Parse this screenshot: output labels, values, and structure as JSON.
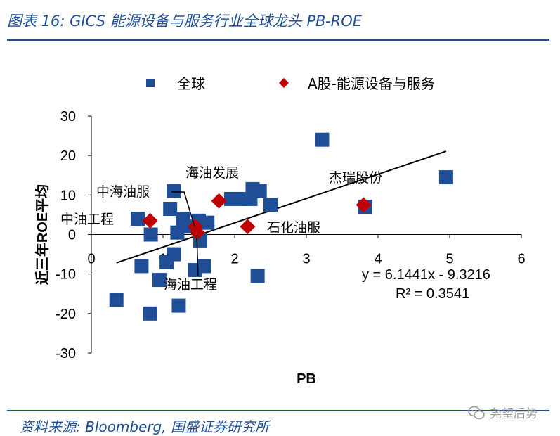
{
  "header": {
    "title": "图表 16:  GICS 能源设备与服务行业全球龙头 PB-ROE"
  },
  "footer": {
    "source": "资料来源:  Bloomberg,  国盛证券研究所",
    "brand": "尧望后势"
  },
  "colors": {
    "global": "#1f4e96",
    "ashare": "#c00000",
    "accent": "#1f4e96"
  },
  "chart_data": {
    "type": "scatter",
    "xlabel": "PB",
    "ylabel": "近三年ROE平均",
    "xlim": [
      0,
      6
    ],
    "ylim": [
      -30,
      30
    ],
    "xticks": [
      "0",
      "1",
      "2",
      "3",
      "4",
      "5",
      "6"
    ],
    "yticks": [
      "30",
      "20",
      "10",
      "0",
      "-10",
      "-20",
      "-30"
    ],
    "legend": {
      "placement": "top",
      "entries": [
        "全球",
        "A股-能源设备与服务"
      ]
    },
    "series": [
      {
        "name": "全球",
        "marker": "square",
        "points": [
          {
            "x": 0.35,
            "y": -16.5
          },
          {
            "x": 0.65,
            "y": 4.0
          },
          {
            "x": 0.7,
            "y": -8.0
          },
          {
            "x": 0.82,
            "y": -20.0
          },
          {
            "x": 0.83,
            "y": 0.0
          },
          {
            "x": 0.95,
            "y": -11.5
          },
          {
            "x": 1.05,
            "y": -7.0
          },
          {
            "x": 1.1,
            "y": 6.5
          },
          {
            "x": 1.15,
            "y": 11.0
          },
          {
            "x": 1.15,
            "y": -5.0
          },
          {
            "x": 1.2,
            "y": 0.5
          },
          {
            "x": 1.22,
            "y": -18.0
          },
          {
            "x": 1.28,
            "y": 4.0
          },
          {
            "x": 1.35,
            "y": 2.0
          },
          {
            "x": 1.45,
            "y": -9.0
          },
          {
            "x": 1.5,
            "y": 3.5
          },
          {
            "x": 1.52,
            "y": -1.5
          },
          {
            "x": 1.57,
            "y": -8.0
          },
          {
            "x": 1.62,
            "y": 3.0
          },
          {
            "x": 1.95,
            "y": 9.0
          },
          {
            "x": 2.1,
            "y": 9.0
          },
          {
            "x": 2.22,
            "y": 9.0
          },
          {
            "x": 2.25,
            "y": 11.5
          },
          {
            "x": 2.35,
            "y": 11.0
          },
          {
            "x": 2.32,
            "y": -10.5
          },
          {
            "x": 2.5,
            "y": 7.5
          },
          {
            "x": 3.22,
            "y": 24.0
          },
          {
            "x": 3.82,
            "y": 7.0
          },
          {
            "x": 4.95,
            "y": 14.5
          }
        ]
      },
      {
        "name": "A股-能源设备与服务",
        "marker": "diamond",
        "points": [
          {
            "x": 0.82,
            "y": 3.5,
            "label": "中油工程"
          },
          {
            "x": 1.45,
            "y": 2.0,
            "label": "中海油服"
          },
          {
            "x": 1.48,
            "y": 0.5,
            "label": "海油工程"
          },
          {
            "x": 1.78,
            "y": 8.5,
            "label": "海油发展"
          },
          {
            "x": 2.18,
            "y": 2.0,
            "label": "石化油服"
          },
          {
            "x": 3.8,
            "y": 7.5,
            "label": "杰瑞股份"
          }
        ]
      }
    ],
    "trendline": {
      "slope": 6.1441,
      "intercept": -9.3216,
      "x_range": [
        0.35,
        4.95
      ],
      "equation": "y = 6.1441x - 9.3216",
      "r2": "R² = 0.3541"
    }
  }
}
